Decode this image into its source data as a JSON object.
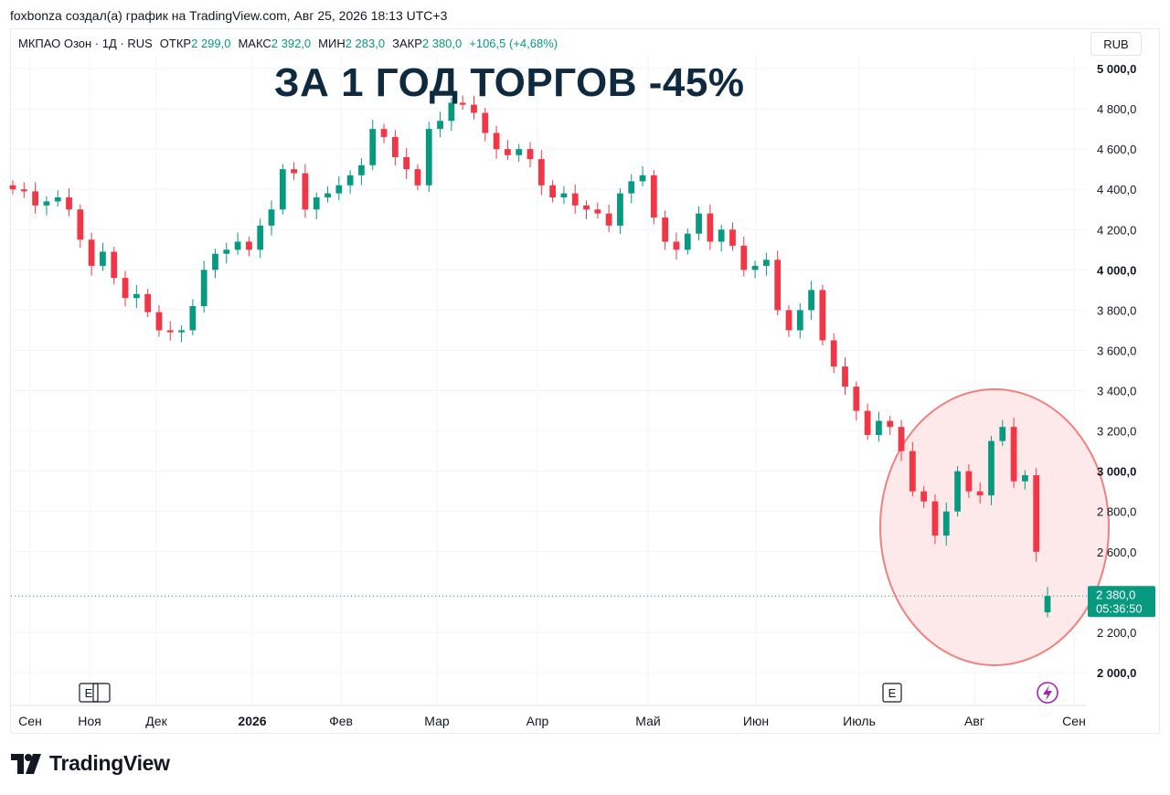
{
  "header": {
    "author_line": "foxbonza создал(а) график на TradingView.com, Авг 25, 2026 18:13 UTC+3"
  },
  "legend": {
    "symbol": "МКПАО Озон · 1Д · RUS",
    "open_label": "ОТКР",
    "open_value": "2 299,0",
    "high_label": "МАКС",
    "high_value": "2 392,0",
    "low_label": "МИН",
    "low_value": "2 283,0",
    "close_label": "ЗАКР",
    "close_value": "2 380,0",
    "change": "+106,5 (+4,68%)"
  },
  "headline": "ЗА 1 ГОД ТОРГОВ -45%",
  "currency_button": "RUB",
  "price_badge": {
    "price": "2 380,0",
    "countdown": "05:36:50"
  },
  "footer": {
    "brand": "TradingView"
  },
  "colors": {
    "up": "#089981",
    "down": "#f23645",
    "grid": "#f0f3fa",
    "highlight_fill": "#fde8ea",
    "highlight_stroke": "#f08080",
    "lightning": "#9c27b0"
  },
  "events": [
    {
      "label": "E",
      "near": "Ноя"
    },
    {
      "label": "E",
      "near": "Июль"
    }
  ],
  "chart_data": {
    "type": "candlestick",
    "title": "",
    "currency": "RUB",
    "ylim": [
      1950,
      5080
    ],
    "y_ticks": [
      {
        "value": 5000,
        "label": "5 000,0",
        "bold": true
      },
      {
        "value": 4800,
        "label": "4 800,0",
        "bold": false
      },
      {
        "value": 4600,
        "label": "4 600,0",
        "bold": false
      },
      {
        "value": 4400,
        "label": "4 400,0",
        "bold": false
      },
      {
        "value": 4200,
        "label": "4 200,0",
        "bold": false
      },
      {
        "value": 4000,
        "label": "4 000,0",
        "bold": true
      },
      {
        "value": 3800,
        "label": "3 800,0",
        "bold": false
      },
      {
        "value": 3600,
        "label": "3 600,0",
        "bold": false
      },
      {
        "value": 3400,
        "label": "3 400,0",
        "bold": false
      },
      {
        "value": 3200,
        "label": "3 200,0",
        "bold": false
      },
      {
        "value": 3000,
        "label": "3 000,0",
        "bold": true
      },
      {
        "value": 2800,
        "label": "2 800,0",
        "bold": false
      },
      {
        "value": 2600,
        "label": "2 600,0",
        "bold": false
      },
      {
        "value": 2200,
        "label": "2 200,0",
        "bold": false
      },
      {
        "value": 2000,
        "label": "2 000,0",
        "bold": true
      }
    ],
    "x_ticks": [
      {
        "label": "Сен",
        "bold": false
      },
      {
        "label": "Ноя",
        "bold": false
      },
      {
        "label": "Дек",
        "bold": false
      },
      {
        "label": "2026",
        "bold": true
      },
      {
        "label": "Фев",
        "bold": false
      },
      {
        "label": "Мар",
        "bold": false
      },
      {
        "label": "Апр",
        "bold": false
      },
      {
        "label": "Май",
        "bold": false
      },
      {
        "label": "Июн",
        "bold": false
      },
      {
        "label": "Июль",
        "bold": false
      },
      {
        "label": "Авг",
        "bold": false
      },
      {
        "label": "Сен",
        "bold": false
      }
    ],
    "last_price": 2380,
    "close_series": [
      4400,
      4390,
      4320,
      4340,
      4360,
      4300,
      4150,
      4020,
      4090,
      3960,
      3860,
      3880,
      3790,
      3700,
      3690,
      3700,
      3820,
      4000,
      4080,
      4100,
      4140,
      4100,
      4220,
      4300,
      4500,
      4480,
      4300,
      4360,
      4380,
      4420,
      4470,
      4520,
      4700,
      4660,
      4560,
      4500,
      4420,
      4700,
      4740,
      4830,
      4820,
      4780,
      4680,
      4600,
      4570,
      4600,
      4550,
      4420,
      4360,
      4380,
      4320,
      4300,
      4280,
      4220,
      4380,
      4440,
      4470,
      4260,
      4140,
      4100,
      4180,
      4280,
      4140,
      4200,
      4120,
      4000,
      4020,
      4050,
      3800,
      3700,
      3800,
      3900,
      3650,
      3520,
      3420,
      3300,
      3180,
      3250,
      3220,
      3100,
      2900,
      2850,
      2680,
      2800,
      3000,
      2900,
      2880,
      3150,
      3220,
      2950,
      2980,
      2600,
      2380
    ],
    "scale_note": "y values in RUB"
  }
}
